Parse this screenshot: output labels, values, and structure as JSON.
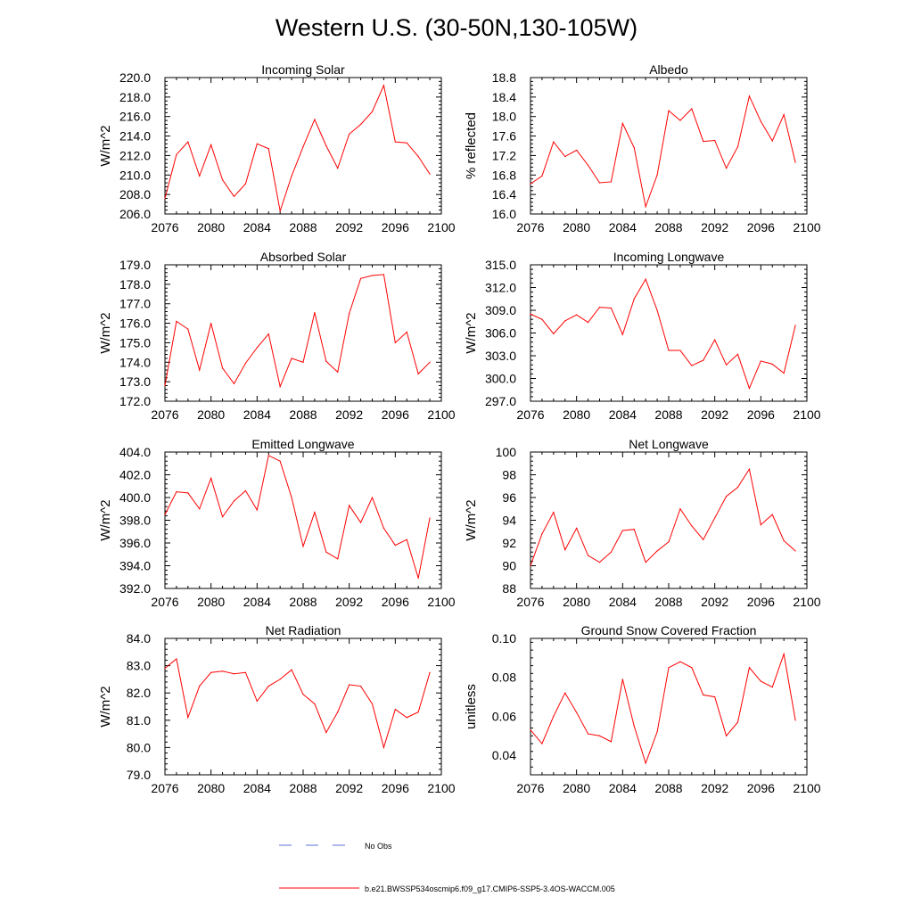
{
  "figure": {
    "title": "Western U.S. (30-50N,130-105W)",
    "legend": [
      {
        "label": "No Obs",
        "color": "#5b6fd8",
        "style": "dashed"
      },
      {
        "label": "b.e21.BWSSP534oscmip6.f09_g17.CMIP6-SSP5-3.4OS-WACCM.005",
        "color": "#ff0000",
        "style": "solid"
      }
    ]
  },
  "chart_data": [
    {
      "type": "line",
      "title": "Incoming Solar",
      "ylabel": "W/m^2",
      "xlim": [
        2076,
        2100
      ],
      "ylim": [
        206.0,
        220.0
      ],
      "xticks": [
        2076,
        2080,
        2084,
        2088,
        2092,
        2096,
        2100
      ],
      "yticks": [
        206.0,
        208.0,
        210.0,
        212.0,
        214.0,
        216.0,
        218.0,
        220.0
      ],
      "ytick_labels": [
        "206.0",
        "208.0",
        "210.0",
        "212.0",
        "214.0",
        "216.0",
        "218.0",
        "220.0"
      ],
      "series": [
        {
          "name": "b.e21.BWSSP534oscmip6.f09_g17.CMIP6-SSP5-3.4OS-WACCM.005",
          "x": [
            2076,
            2077,
            2078,
            2079,
            2080,
            2081,
            2082,
            2083,
            2084,
            2085,
            2086,
            2087,
            2088,
            2089,
            2090,
            2091,
            2092,
            2093,
            2094,
            2095,
            2096,
            2097,
            2098,
            2099
          ],
          "values": [
            207.6,
            212.1,
            213.4,
            209.9,
            213.1,
            209.5,
            207.8,
            209.1,
            213.2,
            212.7,
            206.3,
            209.9,
            212.9,
            215.7,
            213.0,
            210.7,
            214.2,
            215.2,
            216.5,
            219.2,
            213.4,
            213.3,
            211.9,
            210.1
          ]
        }
      ]
    },
    {
      "type": "line",
      "title": "Albedo",
      "ylabel": "% reflected",
      "xlim": [
        2076,
        2100
      ],
      "ylim": [
        16.0,
        18.8
      ],
      "xticks": [
        2076,
        2080,
        2084,
        2088,
        2092,
        2096,
        2100
      ],
      "yticks": [
        16.0,
        16.4,
        16.8,
        17.2,
        17.6,
        18.0,
        18.4,
        18.8
      ],
      "ytick_labels": [
        "16.0",
        "16.4",
        "16.8",
        "17.2",
        "17.6",
        "18.0",
        "18.4",
        "18.8"
      ],
      "series": [
        {
          "name": "b.e21.BWSSP534oscmip6.f09_g17.CMIP6-SSP5-3.4OS-WACCM.005",
          "x": [
            2076,
            2077,
            2078,
            2079,
            2080,
            2081,
            2082,
            2083,
            2084,
            2085,
            2086,
            2087,
            2088,
            2089,
            2090,
            2091,
            2092,
            2093,
            2094,
            2095,
            2096,
            2097,
            2098,
            2099
          ],
          "values": [
            16.62,
            16.78,
            17.48,
            17.18,
            17.31,
            17.0,
            16.64,
            16.66,
            17.86,
            17.36,
            16.15,
            16.8,
            18.12,
            17.92,
            18.16,
            17.49,
            17.51,
            16.94,
            17.38,
            18.42,
            17.9,
            17.5,
            18.04,
            17.06
          ]
        }
      ]
    },
    {
      "type": "line",
      "title": "Absorbed Solar",
      "ylabel": "W/m^2",
      "xlim": [
        2076,
        2100
      ],
      "ylim": [
        172.0,
        179.0
      ],
      "xticks": [
        2076,
        2080,
        2084,
        2088,
        2092,
        2096,
        2100
      ],
      "yticks": [
        172.0,
        173.0,
        174.0,
        175.0,
        176.0,
        177.0,
        178.0,
        179.0
      ],
      "ytick_labels": [
        "172.0",
        "173.0",
        "174.0",
        "175.0",
        "176.0",
        "177.0",
        "178.0",
        "179.0"
      ],
      "series": [
        {
          "name": "b.e21.BWSSP534oscmip6.f09_g17.CMIP6-SSP5-3.4OS-WACCM.005",
          "x": [
            2076,
            2077,
            2078,
            2079,
            2080,
            2081,
            2082,
            2083,
            2084,
            2085,
            2086,
            2087,
            2088,
            2089,
            2090,
            2091,
            2092,
            2093,
            2094,
            2095,
            2096,
            2097,
            2098,
            2099
          ],
          "values": [
            172.8,
            176.1,
            175.7,
            173.6,
            176.0,
            173.7,
            172.9,
            173.95,
            174.75,
            175.45,
            172.75,
            174.2,
            174.0,
            176.55,
            174.05,
            173.5,
            176.5,
            178.3,
            178.45,
            178.5,
            175.0,
            175.55,
            173.4,
            174.0
          ]
        }
      ]
    },
    {
      "type": "line",
      "title": "Incoming Longwave",
      "ylabel": "W/m^2",
      "xlim": [
        2076,
        2100
      ],
      "ylim": [
        297.0,
        315.0
      ],
      "xticks": [
        2076,
        2080,
        2084,
        2088,
        2092,
        2096,
        2100
      ],
      "yticks": [
        297.0,
        300.0,
        303.0,
        306.0,
        309.0,
        312.0,
        315.0
      ],
      "ytick_labels": [
        "297.0",
        "300.0",
        "303.0",
        "306.0",
        "309.0",
        "312.0",
        "315.0"
      ],
      "series": [
        {
          "name": "b.e21.BWSSP534oscmip6.f09_g17.CMIP6-SSP5-3.4OS-WACCM.005",
          "x": [
            2076,
            2077,
            2078,
            2079,
            2080,
            2081,
            2082,
            2083,
            2084,
            2085,
            2086,
            2087,
            2088,
            2089,
            2090,
            2091,
            2092,
            2093,
            2094,
            2095,
            2096,
            2097,
            2098,
            2099
          ],
          "values": [
            308.5,
            307.8,
            305.9,
            307.6,
            308.4,
            307.4,
            309.4,
            309.3,
            305.8,
            310.5,
            313.1,
            309.0,
            303.7,
            303.7,
            301.7,
            302.4,
            305.1,
            301.8,
            303.2,
            298.7,
            302.3,
            301.9,
            300.7,
            307.0
          ]
        }
      ]
    },
    {
      "type": "line",
      "title": "Emitted Longwave",
      "ylabel": "W/m^2",
      "xlim": [
        2076,
        2100
      ],
      "ylim": [
        392.0,
        404.0
      ],
      "xticks": [
        2076,
        2080,
        2084,
        2088,
        2092,
        2096,
        2100
      ],
      "yticks": [
        392.0,
        394.0,
        396.0,
        398.0,
        400.0,
        402.0,
        404.0
      ],
      "ytick_labels": [
        "392.0",
        "394.0",
        "396.0",
        "398.0",
        "400.0",
        "402.0",
        "404.0"
      ],
      "series": [
        {
          "name": "b.e21.BWSSP534oscmip6.f09_g17.CMIP6-SSP5-3.4OS-WACCM.005",
          "x": [
            2076,
            2077,
            2078,
            2079,
            2080,
            2081,
            2082,
            2083,
            2084,
            2085,
            2086,
            2087,
            2088,
            2089,
            2090,
            2091,
            2092,
            2093,
            2094,
            2095,
            2096,
            2097,
            2098,
            2099
          ],
          "values": [
            398.5,
            400.5,
            400.4,
            399.0,
            401.7,
            398.3,
            399.7,
            400.6,
            398.9,
            403.7,
            403.2,
            400.0,
            395.7,
            398.7,
            395.2,
            394.6,
            399.3,
            397.8,
            400.0,
            397.3,
            395.8,
            396.3,
            392.9,
            398.2
          ]
        }
      ]
    },
    {
      "type": "line",
      "title": "Net Longwave",
      "ylabel": "W/m^2",
      "xlim": [
        2076,
        2100
      ],
      "ylim": [
        88,
        100
      ],
      "xticks": [
        2076,
        2080,
        2084,
        2088,
        2092,
        2096,
        2100
      ],
      "yticks": [
        88,
        90,
        92,
        94,
        96,
        98,
        100
      ],
      "ytick_labels": [
        "88",
        "90",
        "92",
        "94",
        "96",
        "98",
        "100"
      ],
      "series": [
        {
          "name": "b.e21.BWSSP534oscmip6.f09_g17.CMIP6-SSP5-3.4OS-WACCM.005",
          "x": [
            2076,
            2077,
            2078,
            2079,
            2080,
            2081,
            2082,
            2083,
            2084,
            2085,
            2086,
            2087,
            2088,
            2089,
            2090,
            2091,
            2092,
            2093,
            2094,
            2095,
            2096,
            2097,
            2098,
            2099
          ],
          "values": [
            90.0,
            92.8,
            94.7,
            91.4,
            93.3,
            90.9,
            90.3,
            91.2,
            93.1,
            93.2,
            90.3,
            91.3,
            92.1,
            95.0,
            93.5,
            92.3,
            94.2,
            96.1,
            96.9,
            98.5,
            93.6,
            94.5,
            92.2,
            91.3
          ]
        }
      ]
    },
    {
      "type": "line",
      "title": "Net Radiation",
      "ylabel": "W/m^2",
      "xlim": [
        2076,
        2100
      ],
      "ylim": [
        79.0,
        84.0
      ],
      "xticks": [
        2076,
        2080,
        2084,
        2088,
        2092,
        2096,
        2100
      ],
      "yticks": [
        79.0,
        80.0,
        81.0,
        82.0,
        83.0,
        84.0
      ],
      "ytick_labels": [
        "79.0",
        "80.0",
        "81.0",
        "82.0",
        "83.0",
        "84.0"
      ],
      "series": [
        {
          "name": "b.e21.BWSSP534oscmip6.f09_g17.CMIP6-SSP5-3.4OS-WACCM.005",
          "x": [
            2076,
            2077,
            2078,
            2079,
            2080,
            2081,
            2082,
            2083,
            2084,
            2085,
            2086,
            2087,
            2088,
            2089,
            2090,
            2091,
            2092,
            2093,
            2094,
            2095,
            2096,
            2097,
            2098,
            2099
          ],
          "values": [
            82.9,
            83.25,
            81.1,
            82.25,
            82.75,
            82.8,
            82.7,
            82.75,
            81.7,
            82.25,
            82.5,
            82.85,
            81.95,
            81.6,
            80.55,
            81.3,
            82.3,
            82.25,
            81.6,
            80.0,
            81.4,
            81.1,
            81.3,
            82.75
          ]
        }
      ]
    },
    {
      "type": "line",
      "title": "Ground Snow Covered Fraction",
      "ylabel": "unitless",
      "xlim": [
        2076,
        2100
      ],
      "ylim": [
        0.03,
        0.1
      ],
      "xticks": [
        2076,
        2080,
        2084,
        2088,
        2092,
        2096,
        2100
      ],
      "yticks": [
        0.04,
        0.06,
        0.08,
        0.1
      ],
      "ytick_labels": [
        "0.04",
        "0.06",
        "0.08",
        "0.10"
      ],
      "series": [
        {
          "name": "b.e21.BWSSP534oscmip6.f09_g17.CMIP6-SSP5-3.4OS-WACCM.005",
          "x": [
            2076,
            2077,
            2078,
            2079,
            2080,
            2081,
            2082,
            2083,
            2084,
            2085,
            2086,
            2087,
            2088,
            2089,
            2090,
            2091,
            2092,
            2093,
            2094,
            2095,
            2096,
            2097,
            2098,
            2099
          ],
          "values": [
            0.053,
            0.046,
            0.06,
            0.072,
            0.062,
            0.051,
            0.05,
            0.047,
            0.079,
            0.055,
            0.036,
            0.052,
            0.085,
            0.088,
            0.085,
            0.071,
            0.07,
            0.05,
            0.057,
            0.085,
            0.078,
            0.075,
            0.092,
            0.058
          ]
        }
      ]
    }
  ]
}
